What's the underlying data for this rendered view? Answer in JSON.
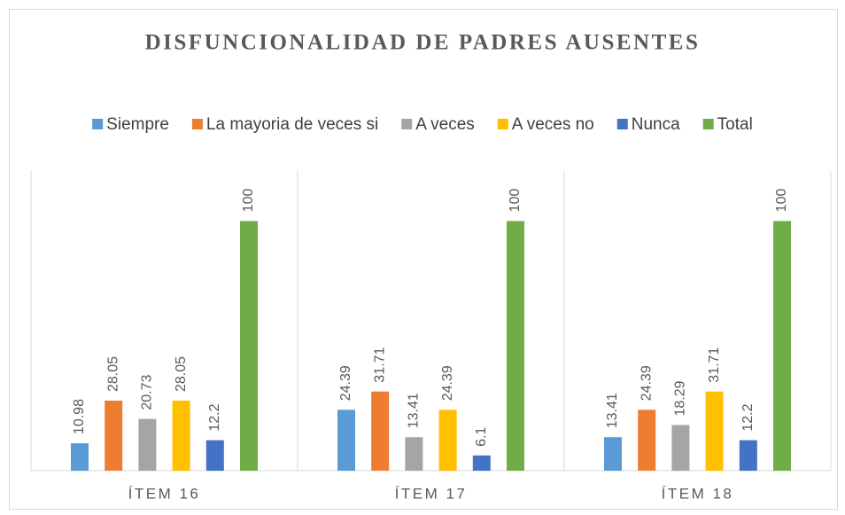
{
  "chart_data": {
    "type": "bar",
    "title": "DISFUNCIONALIDAD DE PADRES AUSENTES",
    "categories": [
      "ÍTEM 16",
      "ÍTEM 17",
      "ÍTEM 18"
    ],
    "series": [
      {
        "name": "Siempre",
        "color": "#5b9bd5",
        "values": [
          10.98,
          24.39,
          13.41
        ]
      },
      {
        "name": "La mayoria de veces si",
        "color": "#ed7d31",
        "values": [
          28.05,
          31.71,
          24.39
        ]
      },
      {
        "name": "A veces",
        "color": "#a5a5a5",
        "values": [
          20.73,
          13.41,
          18.29
        ]
      },
      {
        "name": "A veces no",
        "color": "#ffc000",
        "values": [
          28.05,
          24.39,
          31.71
        ]
      },
      {
        "name": "Nunca",
        "color": "#4472c4",
        "values": [
          12.2,
          6.1,
          12.2
        ]
      },
      {
        "name": "Total",
        "color": "#70ad47",
        "values": [
          100,
          100,
          100
        ]
      }
    ],
    "ylim": [
      0,
      120
    ],
    "legend": "top"
  }
}
